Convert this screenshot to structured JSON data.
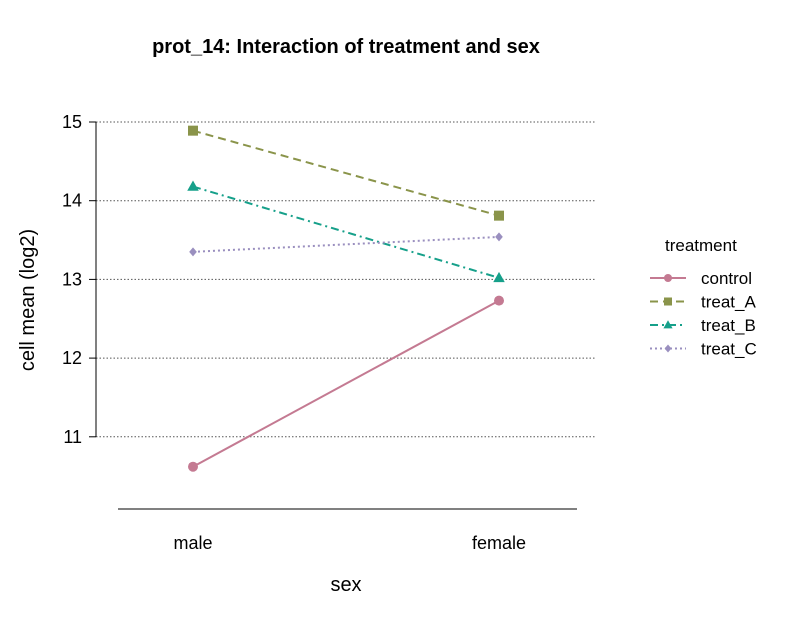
{
  "chart_data": {
    "type": "line",
    "title": "prot_14: Interaction of treatment and sex",
    "xlabel": "sex",
    "ylabel": "cell mean (log2)",
    "categories": [
      "male",
      "female"
    ],
    "ylim": [
      10.1,
      15.2
    ],
    "yticks": [
      11,
      12,
      13,
      14,
      15
    ],
    "grid": "horizontal-dotted",
    "legend": {
      "title": "treatment",
      "placement": "right"
    },
    "series": [
      {
        "name": "control",
        "values": [
          10.62,
          12.73
        ],
        "color": "#c47a92",
        "dash": "solid",
        "marker": "circle"
      },
      {
        "name": "treat_A",
        "values": [
          14.89,
          13.81
        ],
        "color": "#8a944a",
        "dash": "dashed",
        "marker": "square"
      },
      {
        "name": "treat_B",
        "values": [
          14.18,
          13.02
        ],
        "color": "#16a08a",
        "dash": "dashdot",
        "marker": "triangle"
      },
      {
        "name": "treat_C",
        "values": [
          13.35,
          13.54
        ],
        "color": "#9a8fbf",
        "dash": "dotted",
        "marker": "diamond"
      }
    ]
  }
}
